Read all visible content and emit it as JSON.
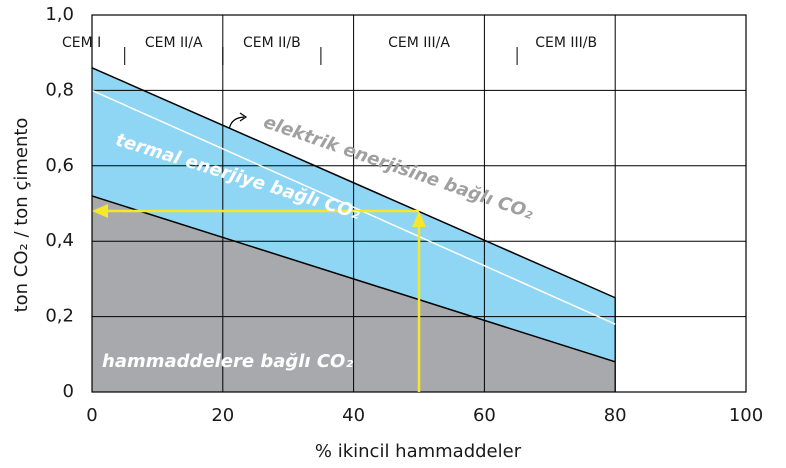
{
  "chart_data": {
    "type": "stacked_area",
    "x_label": "% ikincil hammaddeler",
    "y_label": "ton CO₂ / ton çimento",
    "x": [
      0,
      80
    ],
    "series": [
      {
        "name": "hammaddelere bağlı CO₂",
        "color": "#a7a9ac",
        "line_color": "#000000",
        "label_color": "#ffffff",
        "values": [
          0.52,
          0.08
        ]
      },
      {
        "name": "termal enerjiye bağlı CO₂",
        "color": "#8fd6f4",
        "line_color": "#ffffff",
        "label_color": "#ffffff",
        "values": [
          0.28,
          0.1
        ]
      },
      {
        "name": "elektrik enerjisine bağlı CO₂",
        "color": "#8fd6f4",
        "line_color": "#000000",
        "label_color": "#a0a0a0",
        "values": [
          0.06,
          0.07
        ]
      }
    ],
    "xlim": [
      0,
      100
    ],
    "ylim": [
      0,
      1.0
    ],
    "xticks": [
      0,
      20,
      40,
      60,
      80,
      100
    ],
    "yticks": [
      0,
      {
        "value": 0.2,
        "label": "0,2"
      },
      {
        "value": 0.4,
        "label": "0,4"
      },
      {
        "value": 0.6,
        "label": "0,6"
      },
      {
        "value": 0.8,
        "label": "0,8"
      },
      {
        "value": 1.0,
        "label": "1,0"
      }
    ],
    "grid": true,
    "cement_types": [
      {
        "label": "CEM I",
        "from": 0,
        "to": 5
      },
      {
        "label": "CEM II/A",
        "from": 5,
        "to": 20
      },
      {
        "label": "CEM II/B",
        "from": 20,
        "to": 35
      },
      {
        "label": "CEM III/A",
        "from": 35,
        "to": 65
      },
      {
        "label": "CEM III/B",
        "from": 65,
        "to": 80
      }
    ],
    "annotation": {
      "x": 50,
      "y": 0.48,
      "color": "#f5e82a"
    }
  }
}
